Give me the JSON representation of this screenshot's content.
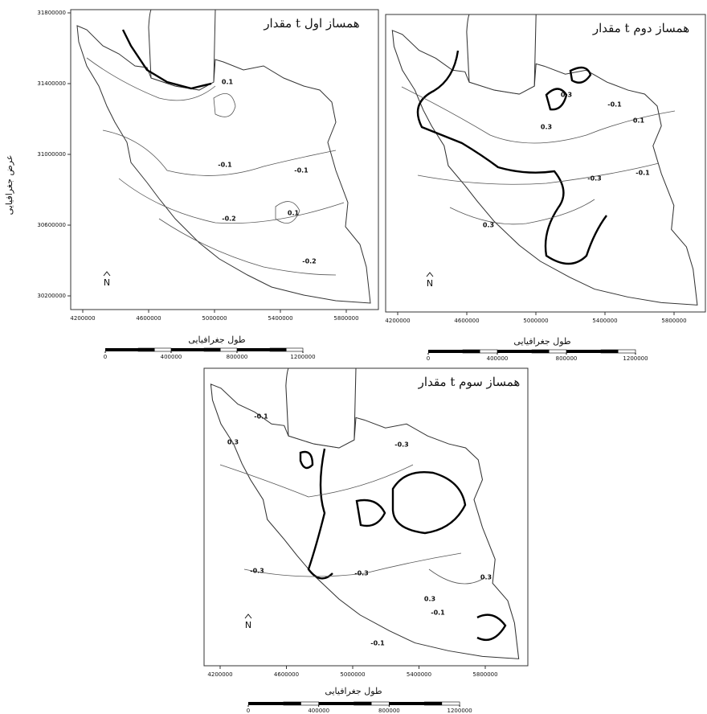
{
  "panels": [
    {
      "title": "مقدار t همساز اول",
      "y_axis": {
        "label": "عرض جغرافیایی",
        "ticks": [
          31800000,
          31400000,
          31000000,
          30600000,
          30200000
        ]
      },
      "x_axis": {
        "label": "طول جغرافیایی",
        "ticks": [
          4200000,
          4600000,
          5000000,
          5400000,
          5800000
        ]
      },
      "scale_bar": [
        0,
        400000,
        800000,
        1200000
      ],
      "north": "N",
      "contour_labels": [
        "0.1",
        "-0.1",
        "-0.1",
        "-0.2",
        "0.1",
        "-0.2"
      ]
    },
    {
      "title": "مقدار t همساز دوم",
      "x_axis": {
        "label": "طول جغرافیایی",
        "ticks": [
          4200000,
          4600000,
          5000000,
          5400000,
          5800000
        ]
      },
      "scale_bar": [
        0,
        400000,
        800000,
        1200000
      ],
      "north": "N",
      "contour_labels": [
        "0.3",
        "-0.1",
        "0.1",
        "0.3",
        "-0.1",
        "-0.3",
        "0.3"
      ]
    },
    {
      "title": "مقدار t همساز سوم",
      "x_axis": {
        "label": "طول جغرافیایی",
        "ticks": [
          4200000,
          4600000,
          5000000,
          5400000,
          5800000
        ]
      },
      "scale_bar": [
        0,
        400000,
        800000,
        1200000
      ],
      "north": "N",
      "contour_labels": [
        "-0.1",
        "-0.3",
        "0.3",
        "-0.3",
        "-0.3",
        "0.3",
        "-0.1",
        "0.3",
        "-0.1"
      ]
    }
  ]
}
